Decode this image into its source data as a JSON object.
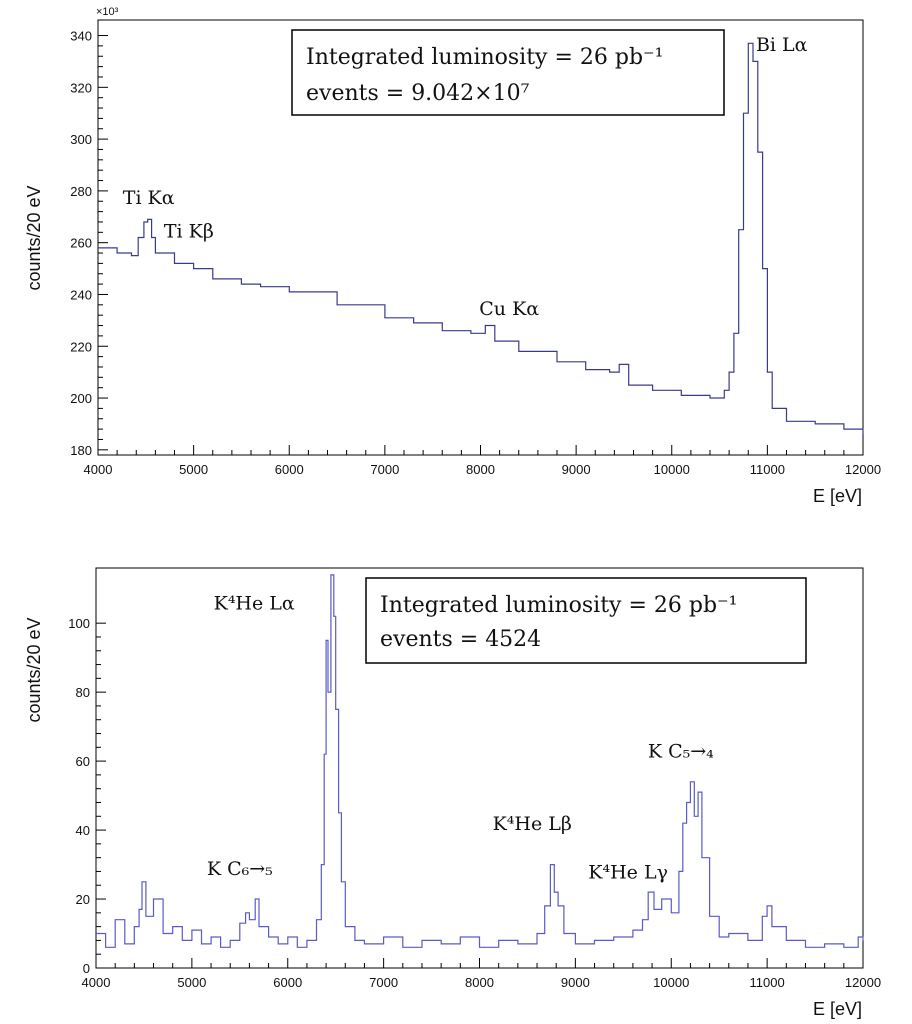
{
  "chart_data": [
    {
      "type": "line",
      "step": true,
      "xlabel": "E [eV]",
      "ylabel": "counts/20 eV",
      "y_multiplier_label": "×10³",
      "xlim": [
        4000,
        12000
      ],
      "ylim": [
        178,
        346
      ],
      "x_ticks": [
        4000,
        5000,
        6000,
        7000,
        8000,
        9000,
        10000,
        11000,
        12000
      ],
      "y_ticks": [
        180,
        200,
        220,
        240,
        260,
        280,
        300,
        320,
        340
      ],
      "color": "#3a3a8c",
      "info_box": [
        "Integrated luminosity = 26 pb⁻¹",
        "events = 9.042×10⁷"
      ],
      "annotations": [
        {
          "text": "Ti Kα",
          "x": 4530,
          "y": 275
        },
        {
          "text": "Ti Kβ",
          "x": 4950,
          "y": 262
        },
        {
          "text": "Cu Kα",
          "x": 8300,
          "y": 232
        },
        {
          "text": "Bi Lα",
          "x": 11150,
          "y": 334
        }
      ],
      "series": [
        {
          "points": [
            [
              4000,
              258
            ],
            [
              4200,
              256
            ],
            [
              4350,
              255
            ],
            [
              4420,
              262
            ],
            [
              4480,
              268
            ],
            [
              4520,
              269
            ],
            [
              4560,
              262
            ],
            [
              4600,
              256
            ],
            [
              4800,
              252
            ],
            [
              5000,
              250
            ],
            [
              5200,
              246
            ],
            [
              5500,
              244
            ],
            [
              5700,
              243
            ],
            [
              6000,
              241
            ],
            [
              6500,
              236
            ],
            [
              7000,
              231
            ],
            [
              7300,
              229
            ],
            [
              7600,
              226
            ],
            [
              7900,
              225
            ],
            [
              8050,
              228
            ],
            [
              8150,
              222
            ],
            [
              8400,
              218
            ],
            [
              8800,
              214
            ],
            [
              9100,
              211
            ],
            [
              9350,
              210
            ],
            [
              9450,
              213
            ],
            [
              9550,
              205
            ],
            [
              9800,
              203
            ],
            [
              10100,
              201
            ],
            [
              10400,
              200
            ],
            [
              10550,
              203
            ],
            [
              10600,
              210
            ],
            [
              10650,
              225
            ],
            [
              10700,
              265
            ],
            [
              10750,
              310
            ],
            [
              10800,
              337
            ],
            [
              10850,
              330
            ],
            [
              10900,
              295
            ],
            [
              10950,
              250
            ],
            [
              11000,
              210
            ],
            [
              11050,
              196
            ],
            [
              11200,
              191
            ],
            [
              11500,
              190
            ],
            [
              11800,
              188
            ],
            [
              12000,
              186
            ]
          ]
        }
      ]
    },
    {
      "type": "line",
      "step": true,
      "xlabel": "E [eV]",
      "ylabel": "counts/20 eV",
      "xlim": [
        4000,
        12000
      ],
      "ylim": [
        0,
        116
      ],
      "x_ticks": [
        4000,
        5000,
        6000,
        7000,
        8000,
        9000,
        10000,
        11000,
        12000
      ],
      "y_ticks": [
        0,
        20,
        40,
        60,
        80,
        100
      ],
      "color": "#5a5ac8",
      "info_box": [
        "Integrated luminosity = 26 pb⁻¹",
        "events = 4524"
      ],
      "annotations": [
        {
          "text": "K⁴He Lα",
          "x": 5650,
          "y": 104
        },
        {
          "text": "K C₆→₅",
          "x": 5500,
          "y": 27
        },
        {
          "text": "K⁴He Lβ",
          "x": 8550,
          "y": 40
        },
        {
          "text": "K⁴He Lγ",
          "x": 9550,
          "y": 26
        },
        {
          "text": "K C₅→₄",
          "x": 10100,
          "y": 61
        }
      ],
      "series": [
        {
          "points": [
            [
              4000,
              10
            ],
            [
              4100,
              6
            ],
            [
              4200,
              14
            ],
            [
              4300,
              7
            ],
            [
              4400,
              12
            ],
            [
              4450,
              17
            ],
            [
              4480,
              25
            ],
            [
              4520,
              15
            ],
            [
              4600,
              20
            ],
            [
              4700,
              10
            ],
            [
              4800,
              12
            ],
            [
              4900,
              8
            ],
            [
              5000,
              11
            ],
            [
              5100,
              7
            ],
            [
              5200,
              9
            ],
            [
              5300,
              6
            ],
            [
              5400,
              8
            ],
            [
              5500,
              13
            ],
            [
              5560,
              16
            ],
            [
              5600,
              14
            ],
            [
              5660,
              20
            ],
            [
              5700,
              12
            ],
            [
              5800,
              9
            ],
            [
              5900,
              7
            ],
            [
              6000,
              9
            ],
            [
              6100,
              6
            ],
            [
              6200,
              8
            ],
            [
              6300,
              14
            ],
            [
              6350,
              30
            ],
            [
              6380,
              62
            ],
            [
              6400,
              95
            ],
            [
              6420,
              80
            ],
            [
              6450,
              114
            ],
            [
              6480,
              102
            ],
            [
              6500,
              75
            ],
            [
              6530,
              45
            ],
            [
              6560,
              25
            ],
            [
              6600,
              12
            ],
            [
              6700,
              8
            ],
            [
              6800,
              7
            ],
            [
              7000,
              9
            ],
            [
              7200,
              6
            ],
            [
              7400,
              8
            ],
            [
              7600,
              7
            ],
            [
              7800,
              9
            ],
            [
              8000,
              6
            ],
            [
              8200,
              8
            ],
            [
              8400,
              7
            ],
            [
              8600,
              10
            ],
            [
              8680,
              18
            ],
            [
              8740,
              30
            ],
            [
              8780,
              22
            ],
            [
              8820,
              18
            ],
            [
              8880,
              10
            ],
            [
              9000,
              7
            ],
            [
              9200,
              8
            ],
            [
              9400,
              9
            ],
            [
              9600,
              11
            ],
            [
              9700,
              14
            ],
            [
              9760,
              22
            ],
            [
              9820,
              17
            ],
            [
              9900,
              20
            ],
            [
              10000,
              16
            ],
            [
              10080,
              28
            ],
            [
              10120,
              42
            ],
            [
              10160,
              48
            ],
            [
              10200,
              54
            ],
            [
              10240,
              44
            ],
            [
              10280,
              51
            ],
            [
              10320,
              32
            ],
            [
              10400,
              15
            ],
            [
              10500,
              9
            ],
            [
              10600,
              10
            ],
            [
              10800,
              8
            ],
            [
              10950,
              15
            ],
            [
              11000,
              18
            ],
            [
              11050,
              12
            ],
            [
              11200,
              8
            ],
            [
              11400,
              6
            ],
            [
              11600,
              7
            ],
            [
              11800,
              6
            ],
            [
              11950,
              9
            ],
            [
              12000,
              8
            ]
          ]
        }
      ]
    }
  ]
}
